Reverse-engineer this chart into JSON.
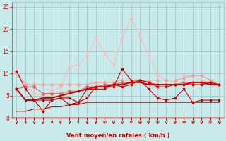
{
  "x": [
    0,
    1,
    2,
    3,
    4,
    5,
    6,
    7,
    8,
    9,
    10,
    11,
    12,
    13,
    14,
    15,
    16,
    17,
    18,
    19,
    20,
    21,
    22,
    23
  ],
  "line_pink_top": [
    10.5,
    7.5,
    5.5,
    5.0,
    6.0,
    7.0,
    11.5,
    12.0,
    14.0,
    18.0,
    14.5,
    12.0,
    18.0,
    22.5,
    18.5,
    14.0,
    9.5,
    8.5,
    8.0,
    9.5,
    9.5,
    8.5,
    8.0,
    7.5
  ],
  "line_pink_mid": [
    10.5,
    7.5,
    7.5,
    7.5,
    7.5,
    7.5,
    7.5,
    7.5,
    7.5,
    8.0,
    8.0,
    8.0,
    8.5,
    8.5,
    8.5,
    8.5,
    8.5,
    8.5,
    8.5,
    9.0,
    9.5,
    9.5,
    8.5,
    7.5
  ],
  "line_mid1": [
    6.5,
    7.0,
    7.0,
    5.5,
    5.5,
    5.5,
    6.0,
    6.0,
    7.0,
    7.0,
    7.5,
    7.5,
    8.0,
    8.0,
    8.5,
    8.0,
    7.5,
    7.5,
    7.5,
    8.0,
    8.0,
    8.0,
    8.0,
    7.5
  ],
  "line_dark1": [
    6.5,
    4.0,
    4.0,
    4.5,
    4.5,
    5.0,
    5.5,
    6.0,
    6.5,
    7.0,
    7.0,
    7.5,
    7.5,
    8.0,
    8.0,
    7.5,
    7.5,
    7.5,
    7.5,
    7.5,
    8.0,
    8.0,
    7.5,
    7.5
  ],
  "line_dark2": [
    10.5,
    6.5,
    4.0,
    4.0,
    4.0,
    4.5,
    4.5,
    3.5,
    4.5,
    7.0,
    7.0,
    7.0,
    11.0,
    8.5,
    8.5,
    8.0,
    7.0,
    7.0,
    7.5,
    7.5,
    7.5,
    7.5,
    8.0,
    7.5
  ],
  "line_dark3": [
    6.5,
    4.0,
    4.0,
    1.5,
    4.0,
    4.5,
    3.0,
    3.5,
    6.5,
    6.5,
    6.5,
    7.5,
    7.0,
    7.5,
    8.5,
    6.5,
    4.5,
    4.0,
    4.5,
    6.5,
    3.5,
    4.0,
    4.0,
    4.0
  ],
  "line_baseline": [
    1.5,
    1.5,
    2.0,
    2.0,
    2.5,
    2.5,
    3.0,
    3.0,
    3.5,
    3.5,
    3.5,
    3.5,
    3.5,
    3.5,
    3.5,
    3.5,
    3.5,
    3.5,
    3.5,
    3.5,
    3.5,
    3.5,
    3.5,
    3.5
  ],
  "xlabel": "Vent moyen/en rafales ( km/h )",
  "ylim": [
    0,
    26
  ],
  "yticks": [
    0,
    5,
    10,
    15,
    20,
    25
  ],
  "bg_color": "#c8eaea",
  "grid_color": "#a8cece",
  "color_dark_red": "#cc0000",
  "color_mid_red": "#e86060",
  "color_light_pink": "#f0a0a0",
  "color_lightest_pink": "#ffbbbb"
}
